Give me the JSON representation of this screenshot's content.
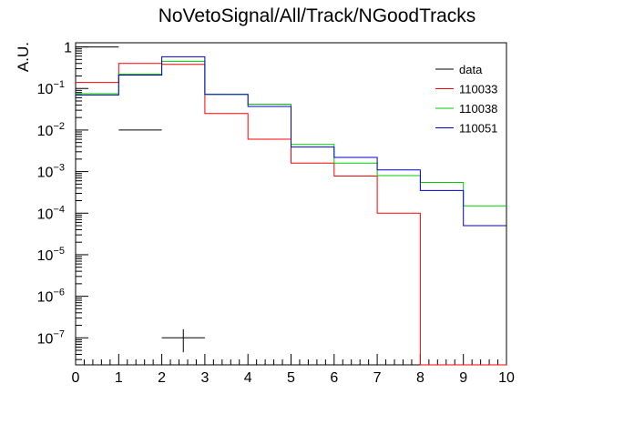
{
  "chart_data": {
    "type": "histogram",
    "title": "NoVetoSignal/All/Track/NGoodTracks",
    "xlabel": "",
    "ylabel": "A.U.",
    "xlim": [
      0,
      10
    ],
    "ylim_log10": [
      -7.65,
      0.1
    ],
    "y_scale": "log",
    "grid": false,
    "legend_position": "top-right",
    "x_ticks": [
      0,
      1,
      2,
      3,
      4,
      5,
      6,
      7,
      8,
      9,
      10
    ],
    "x_tick_labels": [
      "0",
      "1",
      "2",
      "3",
      "4",
      "5",
      "6",
      "7",
      "8",
      "9",
      "10"
    ],
    "y_major_ticks": [
      {
        "exp": 0,
        "base": "1",
        "sup": ""
      },
      {
        "exp": -1,
        "base": "10",
        "sup": "−1"
      },
      {
        "exp": -2,
        "base": "10",
        "sup": "−2"
      },
      {
        "exp": -3,
        "base": "10",
        "sup": "−3"
      },
      {
        "exp": -4,
        "base": "10",
        "sup": "−4"
      },
      {
        "exp": -5,
        "base": "10",
        "sup": "−5"
      },
      {
        "exp": -6,
        "base": "10",
        "sup": "−6"
      },
      {
        "exp": -7,
        "base": "10",
        "sup": "−7"
      }
    ],
    "bin_edges": [
      0,
      1,
      2,
      3,
      4,
      5,
      6,
      7,
      8,
      9,
      10
    ],
    "series": [
      {
        "name": "data",
        "color": "#000000",
        "style": "points",
        "points": [
          {
            "x": 0.5,
            "y": 1.0,
            "xerr": 0.5
          },
          {
            "x": 1.5,
            "y": 0.01,
            "xerr": 0.5
          },
          {
            "x": 2.5,
            "y": 1e-07,
            "xerr": 0.5,
            "y_low": 4.5e-08,
            "y_high": 1.6e-07
          }
        ]
      },
      {
        "name": "110033",
        "color": "#ff0000",
        "style": "step",
        "values": [
          0.14,
          0.4,
          0.38,
          0.025,
          0.006,
          0.0016,
          0.00078,
          0.0001,
          0,
          0
        ]
      },
      {
        "name": "110038",
        "color": "#00cc00",
        "style": "step",
        "values": [
          0.075,
          0.22,
          0.45,
          0.072,
          0.042,
          0.0045,
          0.0016,
          0.0008,
          0.00055,
          0.00015
        ]
      },
      {
        "name": "110051",
        "color": "#0000cc",
        "style": "step",
        "values": [
          0.07,
          0.21,
          0.58,
          0.072,
          0.037,
          0.0039,
          0.0022,
          0.0011,
          0.00035,
          5e-05
        ]
      }
    ]
  }
}
